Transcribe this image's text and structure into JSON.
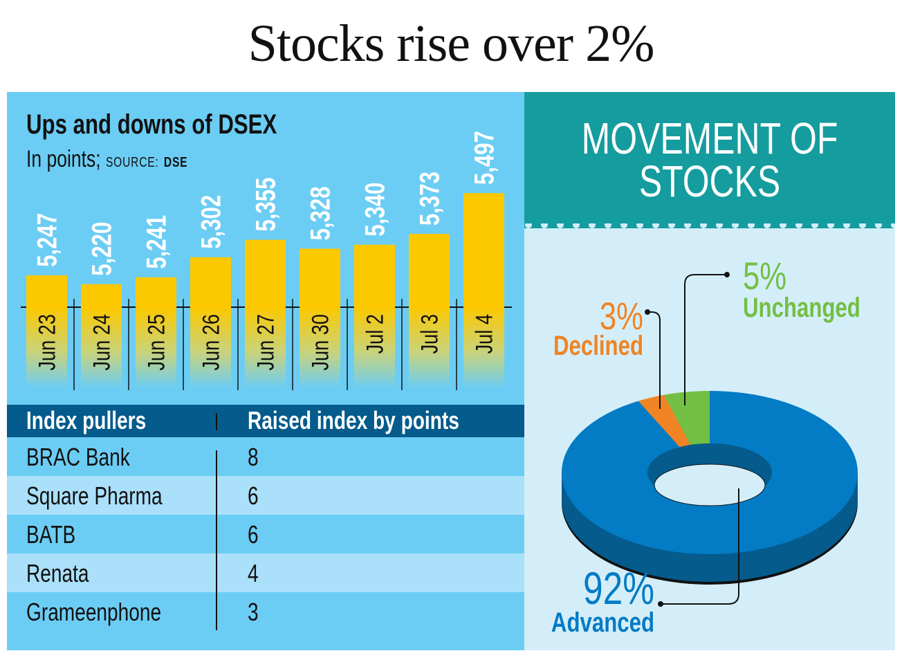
{
  "headline": "Stocks rise over 2%",
  "left_panel": {
    "title": "Ups and downs of DSEX",
    "subtitle": "In points;",
    "source_label": "SOURCE:",
    "source_value": "DSE"
  },
  "table": {
    "headers": [
      "Index pullers",
      "Raised index by points"
    ],
    "rows": [
      {
        "name": "BRAC Bank",
        "points": "8"
      },
      {
        "name": "Square Pharma",
        "points": "6"
      },
      {
        "name": "BATB",
        "points": "6"
      },
      {
        "name": "Renata",
        "points": "4"
      },
      {
        "name": "Grameenphone",
        "points": "3"
      }
    ]
  },
  "right_panel": {
    "title_line1": "MOVEMENT OF",
    "title_line2": "STOCKS"
  },
  "colors": {
    "bar": "#fcc800",
    "left_bg": "#6ccdf4",
    "header_bg": "#045b8c",
    "teal": "#159c9e",
    "advanced": "#037bc5",
    "declined": "#f08423",
    "unchanged": "#73bf44"
  },
  "chart_data": [
    {
      "type": "bar",
      "title": "Ups and downs of DSEX",
      "ylabel": "In points",
      "categories": [
        "Jun 23",
        "Jun 24",
        "Jun 25",
        "Jun 26",
        "Jun 27",
        "Jun 30",
        "Jul 2",
        "Jul 3",
        "Jul 4"
      ],
      "values": [
        5247,
        5220,
        5241,
        5302,
        5355,
        5328,
        5340,
        5373,
        5497
      ],
      "labels": [
        "5,247",
        "5,220",
        "5,241",
        "5,302",
        "5,355",
        "5,328",
        "5,340",
        "5,373",
        "5,497"
      ],
      "source": "DSE"
    },
    {
      "type": "pie",
      "title": "MOVEMENT OF STOCKS",
      "slices": [
        {
          "name": "Advanced",
          "value": 92,
          "label": "92%"
        },
        {
          "name": "Declined",
          "value": 3,
          "label": "3%"
        },
        {
          "name": "Unchanged",
          "value": 5,
          "label": "5%"
        }
      ]
    }
  ]
}
